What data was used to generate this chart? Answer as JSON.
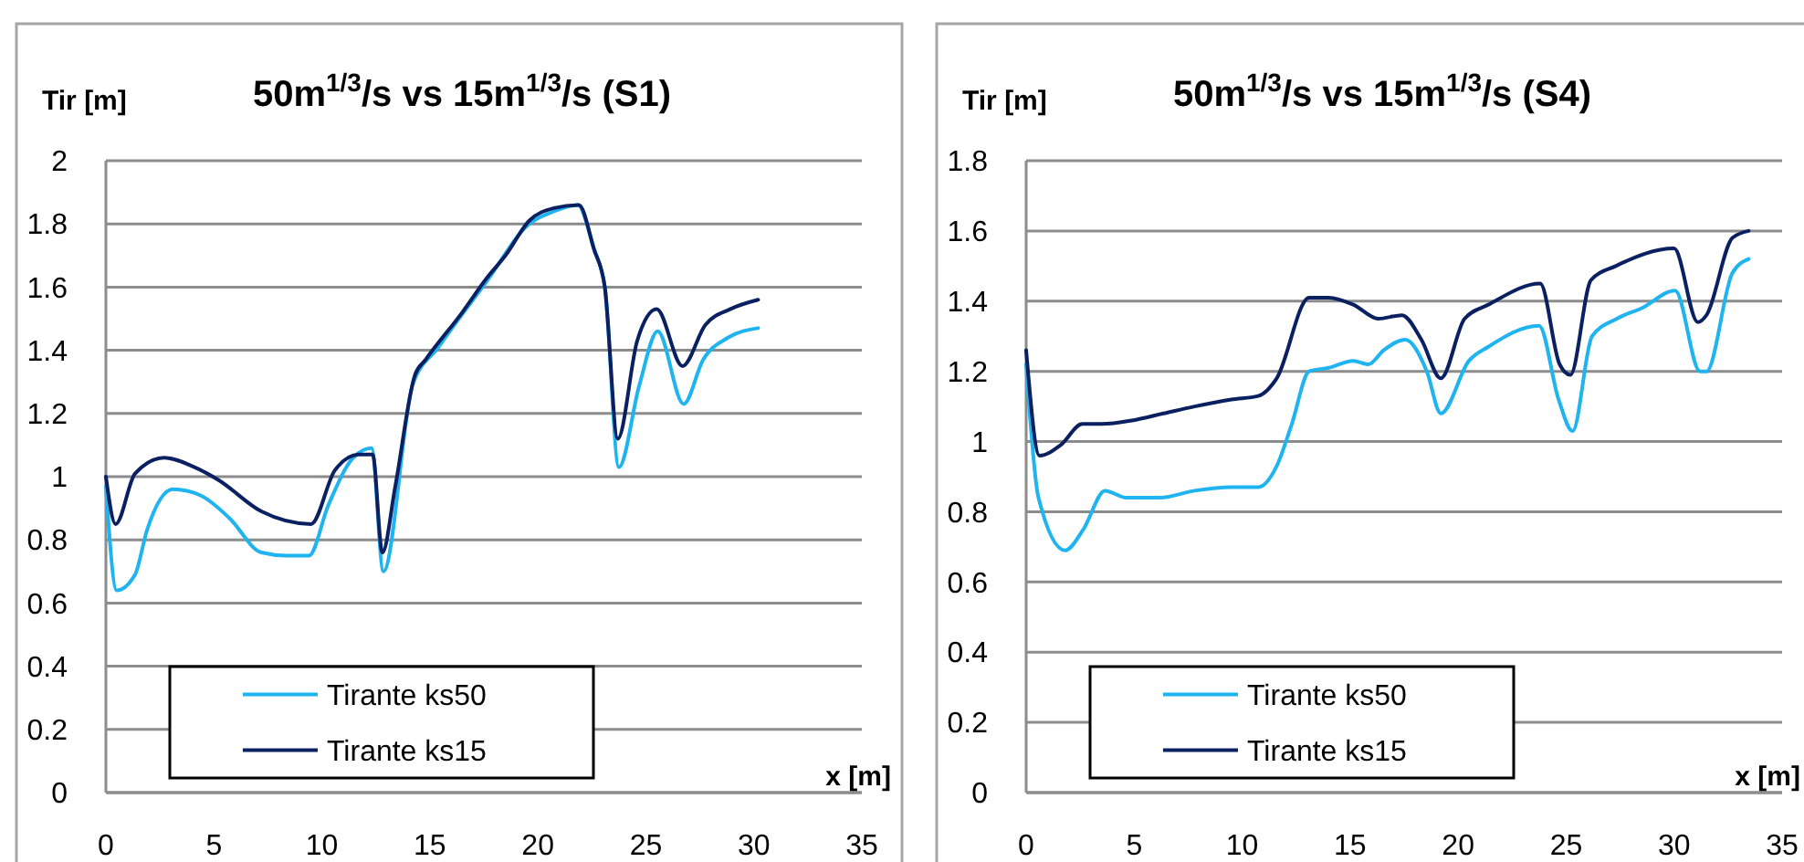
{
  "chart_data": [
    {
      "type": "line",
      "title": "50m$^{1/3}$/s vs 15m$^{1/3}$/s (S1)",
      "xlabel": "x [m]",
      "ylabel": "Tir [m]",
      "xlim": [
        0,
        35
      ],
      "xticks": [
        0,
        5,
        10,
        15,
        20,
        25,
        30,
        35
      ],
      "ylim": [
        0,
        2
      ],
      "yticks": [
        0,
        0.2,
        0.4,
        0.6,
        0.8,
        1,
        1.2,
        1.4,
        1.6,
        1.8,
        2
      ],
      "grid": "y",
      "legend": "bottom left",
      "line_style": "solid",
      "marker": "none",
      "series": [
        {
          "name": "Tirante ks50",
          "color": "#1fb4f0",
          "x": [
            0,
            0.5,
            1.35,
            1.9,
            3.1,
            4.4,
            5.7,
            7.2,
            8.35,
            9.4,
            10.3,
            11.45,
            12.3,
            12.85,
            14.2,
            15.4,
            17.65,
            19.6,
            20.75,
            21.85,
            22.6,
            23.1,
            23.75,
            24.7,
            25.55,
            26.75,
            27.65,
            28.8,
            30.2
          ],
          "values": [
            0.97,
            0.64,
            0.69,
            0.83,
            0.96,
            0.94,
            0.87,
            0.76,
            0.75,
            0.75,
            0.91,
            1.06,
            1.09,
            0.7,
            1.29,
            1.41,
            1.62,
            1.8,
            1.84,
            1.86,
            1.72,
            1.6,
            1.03,
            1.29,
            1.46,
            1.23,
            1.37,
            1.44,
            1.47
          ]
        },
        {
          "name": "Tirante ks15",
          "color": "#0a2060",
          "x": [
            0,
            0.45,
            1.35,
            2.7,
            4.1,
            5.2,
            7.2,
            9.5,
            10.6,
            11.7,
            12.35,
            12.8,
            13.4,
            14.3,
            14.8,
            16.5,
            17.65,
            18.5,
            19.6,
            20.75,
            21.9,
            22.6,
            23.1,
            23.7,
            24.6,
            25.5,
            26.7,
            27.75,
            28.9,
            30.2
          ],
          "values": [
            1,
            0.85,
            1.01,
            1.06,
            1.03,
            0.99,
            0.89,
            0.85,
            1.02,
            1.07,
            1.07,
            0.76,
            0.97,
            1.32,
            1.37,
            1.52,
            1.63,
            1.7,
            1.81,
            1.85,
            1.86,
            1.72,
            1.6,
            1.12,
            1.43,
            1.53,
            1.35,
            1.48,
            1.53,
            1.56
          ]
        }
      ]
    },
    {
      "type": "line",
      "title": "50m$^{1/3}$/s vs 15m$^{1/3}$/s (S4)",
      "xlabel": "x [m]",
      "ylabel": "Tir [m]",
      "xlim": [
        0,
        35
      ],
      "xticks": [
        0,
        5,
        10,
        15,
        20,
        25,
        30,
        35
      ],
      "ylim": [
        0,
        1.8
      ],
      "yticks": [
        0,
        0.2,
        0.4,
        0.6,
        0.8,
        1,
        1.2,
        1.4,
        1.6,
        1.8
      ],
      "grid": "y",
      "legend": "bottom left",
      "line_style": "solid",
      "marker": "none",
      "series": [
        {
          "name": "Tirante ks50",
          "color": "#1fb4f0",
          "x": [
            0,
            0.57,
            1.8,
            2.65,
            3.65,
            4.65,
            6.2,
            7.8,
            9.5,
            10.75,
            11.6,
            12.3,
            13.1,
            14,
            15.15,
            15.85,
            16.55,
            17.55,
            18.55,
            19.2,
            20.5,
            21.4,
            23.75,
            24.65,
            25.3,
            26.2,
            27.35,
            28.5,
            30.05,
            31.2,
            31.5,
            32.7,
            33.45
          ],
          "values": [
            1.22,
            0.84,
            0.69,
            0.75,
            0.86,
            0.84,
            0.84,
            0.86,
            0.87,
            0.87,
            0.93,
            1.05,
            1.2,
            1.21,
            1.23,
            1.22,
            1.26,
            1.29,
            1.2,
            1.08,
            1.23,
            1.27,
            1.33,
            1.12,
            1.03,
            1.3,
            1.35,
            1.38,
            1.43,
            1.2,
            1.2,
            1.48,
            1.52
          ]
        },
        {
          "name": "Tirante ks15",
          "color": "#0a2060",
          "x": [
            0,
            0.62,
            1.6,
            2.6,
            3.5,
            4.9,
            6.35,
            7.8,
            9.5,
            10.75,
            11.6,
            13.1,
            14,
            15.15,
            16.3,
            17.4,
            18.3,
            19.2,
            20.3,
            21.4,
            23.8,
            24.7,
            25.2,
            26.15,
            27.3,
            30,
            31.1,
            31.5,
            32.7,
            33.45
          ],
          "values": [
            1.26,
            0.96,
            0.99,
            1.05,
            1.05,
            1.06,
            1.08,
            1.1,
            1.12,
            1.13,
            1.18,
            1.41,
            1.41,
            1.39,
            1.35,
            1.36,
            1.29,
            1.18,
            1.35,
            1.39,
            1.45,
            1.22,
            1.19,
            1.46,
            1.5,
            1.55,
            1.34,
            1.36,
            1.58,
            1.6
          ]
        }
      ]
    }
  ]
}
